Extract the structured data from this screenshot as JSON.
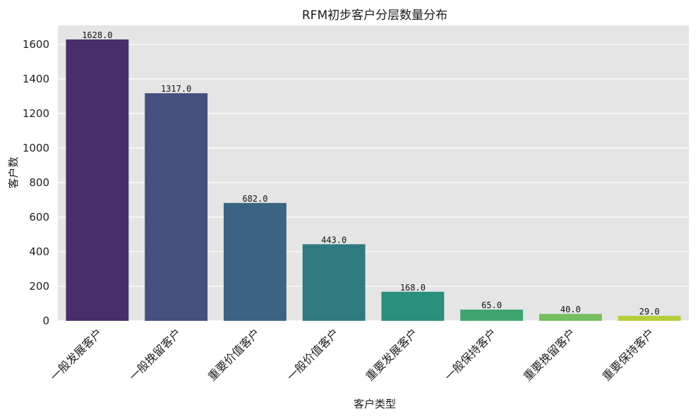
{
  "chart_data": {
    "type": "bar",
    "title": "RFM初步客户分层数量分布",
    "xlabel": "客户类型",
    "ylabel": "客户数",
    "categories": [
      "一般发展客户",
      "一般挽留客户",
      "重要价值客户",
      "一般价值客户",
      "重要发展客户",
      "一般保持客户",
      "重要挽留客户",
      "重要保持客户"
    ],
    "values": [
      1628,
      1317,
      682,
      443,
      168,
      65,
      40,
      29
    ],
    "value_labels": [
      "1628.0",
      "1317.0",
      "682.0",
      "443.0",
      "168.0",
      "65.0",
      "40.0",
      "29.0"
    ],
    "colors": [
      "#482f6b",
      "#46507e",
      "#3a6481",
      "#2f7b80",
      "#2a8f7b",
      "#3fa56f",
      "#76be5f",
      "#b3cf3c"
    ],
    "yticks": [
      0,
      200,
      400,
      600,
      800,
      1000,
      1200,
      1400,
      1600
    ],
    "ylim": [
      0,
      1709.4
    ],
    "grid": true,
    "background": "#e5e5e5",
    "grid_color": "#ffffff"
  }
}
